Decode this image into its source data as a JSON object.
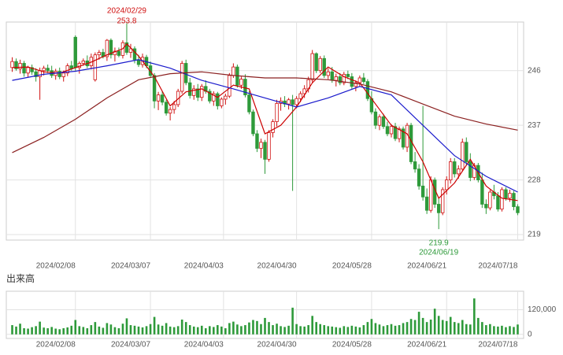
{
  "chart_data": {
    "type": "candlestick",
    "up_color": "#d01010",
    "down_color": "#2e9a3a",
    "grid": true,
    "xlim": [
      -1.5,
      129.5
    ],
    "xticks": [
      {
        "value": 16,
        "label": "2024/02/08"
      },
      {
        "value": 35,
        "label": "2024/03/07"
      },
      {
        "value": 53.5,
        "label": "2024/04/03"
      },
      {
        "value": 72,
        "label": "2024/04/30"
      },
      {
        "value": 91,
        "label": "2024/05/28"
      },
      {
        "value": 110,
        "label": "2024/06/21"
      },
      {
        "value": 128,
        "label": "2024/07/18"
      }
    ],
    "ylim": [
      218.1,
      254.0
    ],
    "yticks": [
      219,
      228,
      237,
      246
    ],
    "candles": [
      [
        246.5,
        248.2,
        245.8,
        247.5
      ],
      [
        247.5,
        248.0,
        246.0,
        246.3
      ],
      [
        246.3,
        247.8,
        245.5,
        247.2
      ],
      [
        247.2,
        247.6,
        245.0,
        245.6
      ],
      [
        245.6,
        246.8,
        244.9,
        246.5
      ],
      [
        246.5,
        247.0,
        245.3,
        245.8
      ],
      [
        245.8,
        246.4,
        244.2,
        245.0
      ],
      [
        245.0,
        246.5,
        241.2,
        246.0
      ],
      [
        246.0,
        246.8,
        245.2,
        246.4
      ],
      [
        246.4,
        247.0,
        245.6,
        246.0
      ],
      [
        246.0,
        246.8,
        244.8,
        245.2
      ],
      [
        245.2,
        246.3,
        244.5,
        245.9
      ],
      [
        245.9,
        246.5,
        244.6,
        245.0
      ],
      [
        245.0,
        246.0,
        244.2,
        245.6
      ],
      [
        245.6,
        247.2,
        245.1,
        246.8
      ],
      [
        246.8,
        247.6,
        246.0,
        246.3
      ],
      [
        251.5,
        251.8,
        246.0,
        246.5
      ],
      [
        246.5,
        247.5,
        245.5,
        247.2
      ],
      [
        247.2,
        248.0,
        246.8,
        247.6
      ],
      [
        247.6,
        248.5,
        246.4,
        246.8
      ],
      [
        246.8,
        248.8,
        246.2,
        248.2
      ],
      [
        244.5,
        249.0,
        244.2,
        248.6
      ],
      [
        248.6,
        249.4,
        247.8,
        249.0
      ],
      [
        249.0,
        249.6,
        248.0,
        248.3
      ],
      [
        248.3,
        251.2,
        247.6,
        251.0
      ],
      [
        251.0,
        251.3,
        248.0,
        248.6
      ],
      [
        248.6,
        249.8,
        247.5,
        249.2
      ],
      [
        249.2,
        249.8,
        248.2,
        248.5
      ],
      [
        248.5,
        251.0,
        248.0,
        250.6
      ],
      [
        250.6,
        253.8,
        248.6,
        249.0
      ],
      [
        249.0,
        250.4,
        248.1,
        249.6
      ],
      [
        249.6,
        250.0,
        247.2,
        247.8
      ],
      [
        247.8,
        248.6,
        246.6,
        247.0
      ],
      [
        247.0,
        248.8,
        246.5,
        248.2
      ],
      [
        248.2,
        248.6,
        246.4,
        246.8
      ],
      [
        246.8,
        247.5,
        244.8,
        245.2
      ],
      [
        245.2,
        245.6,
        239.8,
        241.0
      ],
      [
        241.0,
        242.5,
        239.5,
        242.0
      ],
      [
        242.0,
        242.6,
        240.3,
        240.8
      ],
      [
        240.8,
        241.2,
        238.6,
        239.0
      ],
      [
        239.0,
        240.0,
        237.8,
        239.6
      ],
      [
        239.6,
        241.0,
        238.9,
        240.4
      ],
      [
        240.4,
        243.0,
        240.0,
        242.6
      ],
      [
        242.6,
        247.6,
        242.2,
        247.2
      ],
      [
        247.2,
        247.8,
        243.6,
        244.0
      ],
      [
        244.0,
        244.8,
        241.4,
        241.9
      ],
      [
        241.9,
        243.6,
        241.2,
        243.0
      ],
      [
        243.0,
        243.8,
        241.0,
        241.6
      ],
      [
        241.6,
        243.8,
        241.0,
        243.4
      ],
      [
        243.4,
        244.4,
        242.2,
        242.6
      ],
      [
        242.6,
        243.0,
        240.6,
        241.0
      ],
      [
        241.0,
        242.6,
        240.2,
        242.2
      ],
      [
        242.2,
        242.5,
        239.6,
        240.2
      ],
      [
        240.2,
        241.6,
        239.8,
        241.3
      ],
      [
        241.3,
        242.2,
        240.4,
        241.8
      ],
      [
        241.8,
        245.6,
        241.5,
        245.2
      ],
      [
        245.2,
        247.2,
        244.8,
        246.6
      ],
      [
        246.6,
        247.0,
        243.2,
        243.6
      ],
      [
        243.6,
        245.0,
        243.0,
        244.6
      ],
      [
        244.6,
        245.4,
        241.6,
        242.0
      ],
      [
        242.0,
        242.6,
        238.8,
        239.2
      ],
      [
        239.2,
        239.6,
        235.2,
        235.6
      ],
      [
        235.6,
        236.2,
        232.6,
        233.2
      ],
      [
        233.2,
        234.8,
        231.6,
        234.2
      ],
      [
        234.2,
        234.6,
        229.0,
        231.4
      ],
      [
        231.4,
        236.2,
        231.0,
        235.8
      ],
      [
        235.8,
        238.0,
        235.0,
        237.6
      ],
      [
        237.6,
        241.2,
        236.8,
        240.6
      ],
      [
        240.6,
        241.6,
        239.4,
        241.0
      ],
      [
        241.0,
        241.8,
        240.0,
        240.5
      ],
      [
        240.5,
        241.5,
        239.6,
        241.2
      ],
      [
        241.2,
        242.0,
        226.2,
        240.4
      ],
      [
        240.4,
        241.8,
        239.8,
        241.4
      ],
      [
        241.4,
        242.6,
        240.8,
        242.2
      ],
      [
        242.2,
        243.6,
        241.5,
        243.0
      ],
      [
        243.0,
        245.0,
        242.4,
        244.5
      ],
      [
        244.5,
        249.4,
        244.0,
        248.8
      ],
      [
        248.8,
        249.0,
        245.6,
        246.0
      ],
      [
        246.0,
        248.4,
        245.6,
        248.0
      ],
      [
        248.0,
        248.5,
        244.8,
        245.2
      ],
      [
        245.2,
        246.4,
        244.6,
        245.8
      ],
      [
        245.8,
        246.6,
        244.0,
        244.4
      ],
      [
        244.4,
        245.5,
        243.4,
        245.0
      ],
      [
        245.0,
        245.6,
        243.6,
        244.0
      ],
      [
        244.0,
        245.8,
        243.6,
        245.4
      ],
      [
        245.4,
        246.0,
        244.6,
        245.0
      ],
      [
        245.0,
        245.6,
        243.0,
        243.4
      ],
      [
        243.4,
        244.4,
        242.6,
        244.0
      ],
      [
        244.0,
        245.2,
        243.4,
        244.8
      ],
      [
        244.8,
        245.6,
        243.8,
        244.2
      ],
      [
        244.2,
        244.6,
        241.0,
        241.4
      ],
      [
        241.4,
        242.6,
        238.8,
        239.2
      ],
      [
        239.2,
        239.8,
        236.4,
        237.0
      ],
      [
        237.0,
        238.8,
        236.2,
        238.4
      ],
      [
        238.4,
        238.9,
        236.4,
        236.8
      ],
      [
        236.8,
        237.6,
        235.2,
        235.6
      ],
      [
        235.6,
        237.2,
        235.0,
        236.8
      ],
      [
        236.8,
        237.4,
        234.4,
        234.8
      ],
      [
        234.8,
        236.8,
        234.2,
        236.4
      ],
      [
        236.4,
        236.8,
        233.0,
        233.4
      ],
      [
        233.4,
        237.4,
        232.6,
        237.0
      ],
      [
        237.0,
        237.4,
        230.6,
        231.0
      ],
      [
        231.0,
        232.6,
        229.2,
        229.8
      ],
      [
        229.8,
        230.6,
        226.4,
        227.0
      ],
      [
        227.0,
        240.2,
        224.6,
        225.2
      ],
      [
        225.2,
        226.6,
        222.4,
        223.0
      ],
      [
        223.0,
        228.6,
        222.6,
        228.0
      ],
      [
        228.0,
        228.4,
        223.4,
        224.0
      ],
      [
        224.0,
        225.0,
        219.9,
        222.6
      ],
      [
        222.6,
        226.8,
        222.2,
        226.4
      ],
      [
        226.4,
        228.6,
        225.6,
        228.0
      ],
      [
        228.0,
        231.6,
        227.4,
        231.0
      ],
      [
        231.0,
        231.6,
        228.4,
        229.0
      ],
      [
        229.0,
        230.4,
        228.2,
        229.8
      ],
      [
        229.8,
        234.8,
        229.4,
        234.2
      ],
      [
        234.2,
        235.0,
        230.4,
        231.0
      ],
      [
        231.0,
        232.4,
        227.8,
        228.4
      ],
      [
        228.4,
        230.8,
        228.0,
        230.4
      ],
      [
        230.4,
        230.8,
        227.6,
        228.0
      ],
      [
        228.0,
        229.2,
        223.4,
        224.0
      ],
      [
        224.0,
        224.8,
        222.4,
        223.4
      ],
      [
        223.4,
        226.4,
        223.0,
        226.0
      ],
      [
        226.0,
        227.2,
        224.8,
        225.4
      ],
      [
        225.4,
        226.0,
        222.8,
        223.2
      ],
      [
        223.2,
        226.8,
        222.8,
        226.4
      ],
      [
        226.4,
        226.8,
        224.6,
        225.0
      ],
      [
        225.0,
        226.4,
        224.4,
        225.8
      ],
      [
        225.8,
        226.2,
        223.0,
        223.6
      ],
      [
        223.6,
        224.0,
        222.2,
        222.6
      ]
    ],
    "series": [
      {
        "color": "#cc0000",
        "x": [
          0,
          4,
          8,
          12,
          16,
          20,
          24,
          28,
          29,
          32,
          36,
          40,
          44,
          48,
          52,
          56,
          60,
          64,
          68,
          72,
          76,
          80,
          84,
          88,
          92,
          96,
          100,
          104,
          108,
          112,
          116,
          120,
          124,
          128
        ],
        "values": [
          246.5,
          246.6,
          245.8,
          245.6,
          246.5,
          247.4,
          248.6,
          249.6,
          250.4,
          248.4,
          245,
          240.2,
          242.5,
          243,
          241.6,
          243.6,
          243,
          235.6,
          237,
          240,
          244,
          246.6,
          245,
          244,
          240.5,
          237,
          235.6,
          231,
          225,
          227.5,
          231.4,
          227,
          225,
          224.6
        ]
      },
      {
        "color": "#1a1acc",
        "x": [
          0,
          8,
          16,
          24,
          32,
          40,
          48,
          56,
          64,
          72,
          80,
          88,
          96,
          104,
          112,
          120,
          128
        ],
        "values": [
          244.4,
          245.4,
          245.9,
          246.8,
          247.8,
          246.4,
          244.4,
          243,
          241.5,
          240,
          241.5,
          243.4,
          242,
          237,
          232,
          228.6,
          226
        ]
      },
      {
        "color": "#8b2020",
        "x": [
          0,
          8,
          16,
          24,
          32,
          40,
          48,
          56,
          64,
          72,
          80,
          88,
          96,
          104,
          112,
          120,
          128
        ],
        "values": [
          232.5,
          235,
          238,
          241.5,
          244.5,
          245.5,
          245.8,
          245.2,
          244.8,
          244.8,
          244.5,
          243.8,
          242.5,
          240.5,
          238.5,
          237.2,
          236.2
        ]
      }
    ],
    "high": {
      "date": "2024/02/29",
      "value": 253.8
    },
    "low": {
      "value": 219.9,
      "date": "2024/06/19"
    },
    "volume": {
      "label": "出来高",
      "color": "#2e9a3a",
      "ylim": [
        -20000,
        210000
      ],
      "yticks": [
        {
          "value": 120000,
          "label": "120,000"
        },
        0
      ],
      "values": [
        45000,
        38000,
        52000,
        30000,
        28000,
        35000,
        40000,
        62000,
        33000,
        30000,
        36000,
        28000,
        25000,
        30000,
        34000,
        42000,
        70000,
        40000,
        36000,
        30000,
        45000,
        60000,
        38000,
        32000,
        55000,
        48000,
        35000,
        30000,
        52000,
        78000,
        45000,
        42000,
        38000,
        34000,
        40000,
        50000,
        85000,
        48000,
        42000,
        55000,
        38000,
        35000,
        40000,
        72000,
        60000,
        45000,
        38000,
        35000,
        42000,
        30000,
        40000,
        36000,
        45000,
        38000,
        30000,
        55000,
        62000,
        48000,
        40000,
        45000,
        58000,
        70000,
        65000,
        50000,
        80000,
        60000,
        45000,
        52000,
        40000,
        36000,
        42000,
        130000,
        50000,
        40000,
        38000,
        45000,
        90000,
        60000,
        50000,
        45000,
        40000,
        38000,
        35000,
        32000,
        40000,
        36000,
        42000,
        38000,
        34000,
        45000,
        60000,
        75000,
        55000,
        48000,
        40000,
        45000,
        50000,
        42000,
        45000,
        55000,
        60000,
        75000,
        70000,
        110000,
        80000,
        60000,
        72000,
        125000,
        90000,
        70000,
        65000,
        85000,
        60000,
        55000,
        70000,
        50000,
        48000,
        175000,
        80000,
        60000,
        45000,
        50000,
        40000,
        38000,
        42000,
        35000,
        40000,
        36000,
        48000
      ]
    }
  }
}
